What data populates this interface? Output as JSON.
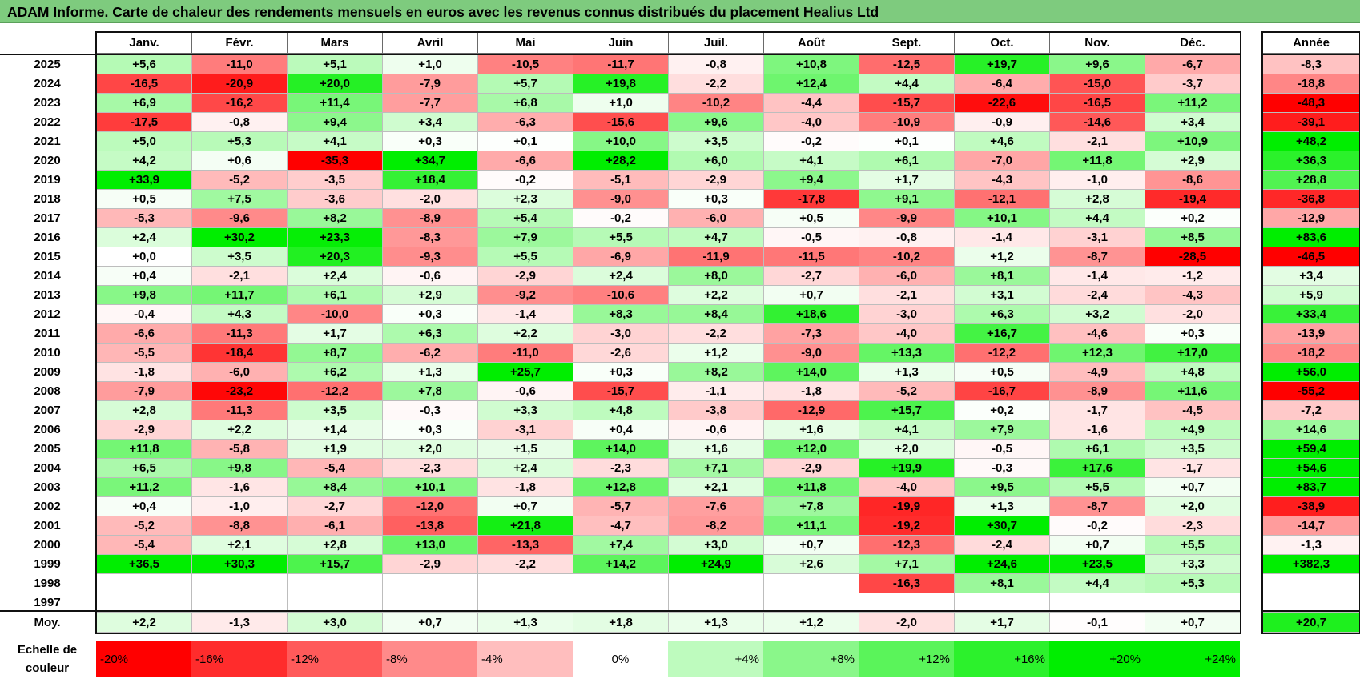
{
  "title": "ADAM Informe. Carte de chaleur des rendements mensuels en euros avec les revenus connus distribués du placement Healius Ltd",
  "months": [
    "Janv.",
    "Févr.",
    "Mars",
    "Avril",
    "Mai",
    "Juin",
    "Juil.",
    "Août",
    "Sept.",
    "Oct.",
    "Nov.",
    "Déc."
  ],
  "year_header": "Année",
  "avg_label": "Moy.",
  "legend_label_line1": "Echelle de",
  "legend_label_line2": "couleur",
  "colors": {
    "negative": "#ff0000",
    "positive": "#00ee00",
    "neutral": "#ffffff",
    "title_bar": "#7ecb7e"
  },
  "chart_data": {
    "type": "heatmap",
    "title": "ADAM Informe. Carte de chaleur des rendements mensuels en euros avec les revenus connus distribués du placement Healius Ltd",
    "columns": [
      "Janv.",
      "Févr.",
      "Mars",
      "Avril",
      "Mai",
      "Juin",
      "Juil.",
      "Août",
      "Sept.",
      "Oct.",
      "Nov.",
      "Déc."
    ],
    "rows": [
      {
        "year": "2025",
        "values": [
          "+5,6",
          "-11,0",
          "+5,1",
          "+1,0",
          "-10,5",
          "-11,7",
          "-0,8",
          "+10,8",
          "-12,5",
          "+19,7",
          "+9,6",
          "-6,7"
        ],
        "annual": "-8,3"
      },
      {
        "year": "2024",
        "values": [
          "-16,5",
          "-20,9",
          "+20,0",
          "-7,9",
          "+5,7",
          "+19,8",
          "-2,2",
          "+12,4",
          "+4,4",
          "-6,4",
          "-15,0",
          "-3,7"
        ],
        "annual": "-18,8"
      },
      {
        "year": "2023",
        "values": [
          "+6,9",
          "-16,2",
          "+11,4",
          "-7,7",
          "+6,8",
          "+1,0",
          "-10,2",
          "-4,4",
          "-15,7",
          "-22,6",
          "-16,5",
          "+11,2"
        ],
        "annual": "-48,3"
      },
      {
        "year": "2022",
        "values": [
          "-17,5",
          "-0,8",
          "+9,4",
          "+3,4",
          "-6,3",
          "-15,6",
          "+9,6",
          "-4,0",
          "-10,9",
          "-0,9",
          "-14,6",
          "+3,4"
        ],
        "annual": "-39,1"
      },
      {
        "year": "2021",
        "values": [
          "+5,0",
          "+5,3",
          "+4,1",
          "+0,3",
          "+0,1",
          "+10,0",
          "+3,5",
          "-0,2",
          "+0,1",
          "+4,6",
          "-2,1",
          "+10,9"
        ],
        "annual": "+48,2"
      },
      {
        "year": "2020",
        "values": [
          "+4,2",
          "+0,6",
          "-35,3",
          "+34,7",
          "-6,6",
          "+28,2",
          "+6,0",
          "+4,1",
          "+6,1",
          "-7,0",
          "+11,8",
          "+2,9"
        ],
        "annual": "+36,3"
      },
      {
        "year": "2019",
        "values": [
          "+33,9",
          "-5,2",
          "-3,5",
          "+18,4",
          "-0,2",
          "-5,1",
          "-2,9",
          "+9,4",
          "+1,7",
          "-4,3",
          "-1,0",
          "-8,6"
        ],
        "annual": "+28,8"
      },
      {
        "year": "2018",
        "values": [
          "+0,5",
          "+7,5",
          "-3,6",
          "-2,0",
          "+2,3",
          "-9,0",
          "+0,3",
          "-17,8",
          "+9,1",
          "-12,1",
          "+2,8",
          "-19,4"
        ],
        "annual": "-36,8"
      },
      {
        "year": "2017",
        "values": [
          "-5,3",
          "-9,6",
          "+8,2",
          "-8,9",
          "+5,4",
          "-0,2",
          "-6,0",
          "+0,5",
          "-9,9",
          "+10,1",
          "+4,4",
          "+0,2"
        ],
        "annual": "-12,9"
      },
      {
        "year": "2016",
        "values": [
          "+2,4",
          "+30,2",
          "+23,3",
          "-8,3",
          "+7,9",
          "+5,5",
          "+4,7",
          "-0,5",
          "-0,8",
          "-1,4",
          "-3,1",
          "+8,5"
        ],
        "annual": "+83,6"
      },
      {
        "year": "2015",
        "values": [
          "+0,0",
          "+3,5",
          "+20,3",
          "-9,3",
          "+5,5",
          "-6,9",
          "-11,9",
          "-11,5",
          "-10,2",
          "+1,2",
          "-8,7",
          "-28,5"
        ],
        "annual": "-46,5"
      },
      {
        "year": "2014",
        "values": [
          "+0,4",
          "-2,1",
          "+2,4",
          "-0,6",
          "-2,9",
          "+2,4",
          "+8,0",
          "-2,7",
          "-6,0",
          "+8,1",
          "-1,4",
          "-1,2"
        ],
        "annual": "+3,4"
      },
      {
        "year": "2013",
        "values": [
          "+9,8",
          "+11,7",
          "+6,1",
          "+2,9",
          "-9,2",
          "-10,6",
          "+2,2",
          "+0,7",
          "-2,1",
          "+3,1",
          "-2,4",
          "-4,3"
        ],
        "annual": "+5,9"
      },
      {
        "year": "2012",
        "values": [
          "-0,4",
          "+4,3",
          "-10,0",
          "+0,3",
          "-1,4",
          "+8,3",
          "+8,4",
          "+18,6",
          "-3,0",
          "+6,3",
          "+3,2",
          "-2,0"
        ],
        "annual": "+33,4"
      },
      {
        "year": "2011",
        "values": [
          "-6,6",
          "-11,3",
          "+1,7",
          "+6,3",
          "+2,2",
          "-3,0",
          "-2,2",
          "-7,3",
          "-4,0",
          "+16,7",
          "-4,6",
          "+0,3"
        ],
        "annual": "-13,9"
      },
      {
        "year": "2010",
        "values": [
          "-5,5",
          "-18,4",
          "+8,7",
          "-6,2",
          "-11,0",
          "-2,6",
          "+1,2",
          "-9,0",
          "+13,3",
          "-12,2",
          "+12,3",
          "+17,0"
        ],
        "annual": "-18,2"
      },
      {
        "year": "2009",
        "values": [
          "-1,8",
          "-6,0",
          "+6,2",
          "+1,3",
          "+25,7",
          "+0,3",
          "+8,2",
          "+14,0",
          "+1,3",
          "+0,5",
          "-4,9",
          "+4,8"
        ],
        "annual": "+56,0"
      },
      {
        "year": "2008",
        "values": [
          "-7,9",
          "-23,2",
          "-12,2",
          "+7,8",
          "-0,6",
          "-15,7",
          "-1,1",
          "-1,8",
          "-5,2",
          "-16,7",
          "-8,9",
          "+11,6"
        ],
        "annual": "-55,2"
      },
      {
        "year": "2007",
        "values": [
          "+2,8",
          "-11,3",
          "+3,5",
          "-0,3",
          "+3,3",
          "+4,8",
          "-3,8",
          "-12,9",
          "+15,7",
          "+0,2",
          "-1,7",
          "-4,5"
        ],
        "annual": "-7,2"
      },
      {
        "year": "2006",
        "values": [
          "-2,9",
          "+2,2",
          "+1,4",
          "+0,3",
          "-3,1",
          "+0,4",
          "-0,6",
          "+1,6",
          "+4,1",
          "+7,9",
          "-1,6",
          "+4,9"
        ],
        "annual": "+14,6"
      },
      {
        "year": "2005",
        "values": [
          "+11,8",
          "-5,8",
          "+1,9",
          "+2,0",
          "+1,5",
          "+14,0",
          "+1,6",
          "+12,0",
          "+2,0",
          "-0,5",
          "+6,1",
          "+3,5"
        ],
        "annual": "+59,4"
      },
      {
        "year": "2004",
        "values": [
          "+6,5",
          "+9,8",
          "-5,4",
          "-2,3",
          "+2,4",
          "-2,3",
          "+7,1",
          "-2,9",
          "+19,9",
          "-0,3",
          "+17,6",
          "-1,7"
        ],
        "annual": "+54,6"
      },
      {
        "year": "2003",
        "values": [
          "+11,2",
          "-1,6",
          "+8,4",
          "+10,1",
          "-1,8",
          "+12,8",
          "+2,1",
          "+11,8",
          "-4,0",
          "+9,5",
          "+5,5",
          "+0,7"
        ],
        "annual": "+83,7"
      },
      {
        "year": "2002",
        "values": [
          "+0,4",
          "-1,0",
          "-2,7",
          "-12,0",
          "+0,7",
          "-5,7",
          "-7,6",
          "+7,8",
          "-19,9",
          "+1,3",
          "-8,7",
          "+2,0"
        ],
        "annual": "-38,9"
      },
      {
        "year": "2001",
        "values": [
          "-5,2",
          "-8,8",
          "-6,1",
          "-13,8",
          "+21,8",
          "-4,7",
          "-8,2",
          "+11,1",
          "-19,2",
          "+30,7",
          "-0,2",
          "-2,3"
        ],
        "annual": "-14,7"
      },
      {
        "year": "2000",
        "values": [
          "-5,4",
          "+2,1",
          "+2,8",
          "+13,0",
          "-13,3",
          "+7,4",
          "+3,0",
          "+0,7",
          "-12,3",
          "-2,4",
          "+0,7",
          "+5,5"
        ],
        "annual": "-1,3"
      },
      {
        "year": "1999",
        "values": [
          "+36,5",
          "+30,3",
          "+15,7",
          "-2,9",
          "-2,2",
          "+14,2",
          "+24,9",
          "+2,6",
          "+7,1",
          "+24,6",
          "+23,5",
          "+3,3"
        ],
        "annual": "+382,3"
      },
      {
        "year": "1998",
        "values": [
          "",
          "",
          "",
          "",
          "",
          "",
          "",
          "",
          "-16,3",
          "+8,1",
          "+4,4",
          "+5,3"
        ],
        "annual": ""
      },
      {
        "year": "1997",
        "values": [
          "",
          "",
          "",
          "",
          "",
          "",
          "",
          "",
          "",
          "",
          "",
          ""
        ],
        "annual": ""
      }
    ],
    "average": {
      "values": [
        "+2,2",
        "-1,3",
        "+3,0",
        "+0,7",
        "+1,3",
        "+1,8",
        "+1,3",
        "+1,2",
        "-2,0",
        "+1,7",
        "-0,1",
        "+0,7"
      ],
      "annual": "+20,7"
    },
    "color_scale": [
      "-20%",
      "-16%",
      "-12%",
      "-8%",
      "-4%",
      "0%",
      "+4%",
      "+8%",
      "+12%",
      "+16%",
      "+20%",
      "+24%"
    ]
  }
}
